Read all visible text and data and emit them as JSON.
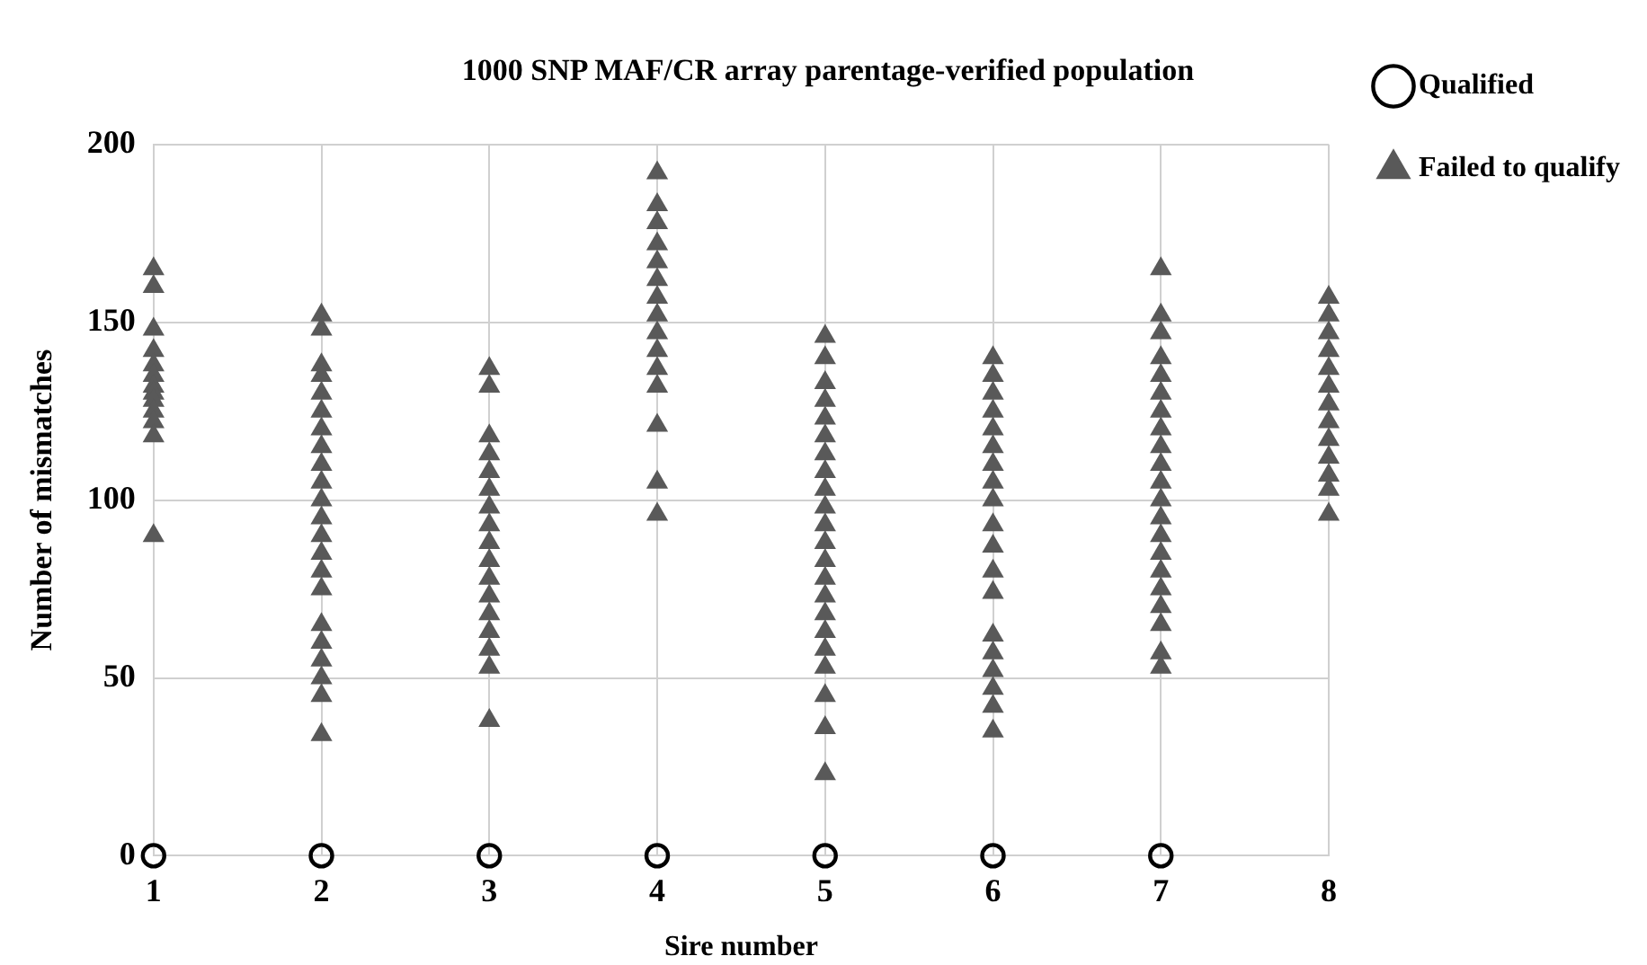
{
  "chart_data": {
    "type": "scatter",
    "title": "1000 SNP MAF/CR array parentage-verified population",
    "xlabel": "Sire number",
    "ylabel": "Number of mismatches",
    "xlim": [
      1,
      8
    ],
    "xticks": [
      1,
      2,
      3,
      4,
      5,
      6,
      7,
      8
    ],
    "ylim": [
      0,
      200
    ],
    "yticks": [
      0,
      50,
      100,
      150,
      200
    ],
    "grid": true,
    "legend": "right",
    "series": [
      {
        "name": "Qualified",
        "color": "#000000",
        "marker": "circle",
        "x": [
          1,
          2,
          3,
          4,
          5,
          6,
          7
        ],
        "values": [
          0,
          0,
          0,
          0,
          0,
          0,
          0
        ]
      },
      {
        "name": "Failed to qualify",
        "color": "#595959",
        "marker": "triangle",
        "x": [
          1,
          1,
          1,
          1,
          1,
          1,
          1,
          1,
          1,
          1,
          1,
          1,
          1,
          2,
          2,
          2,
          2,
          2,
          2,
          2,
          2,
          2,
          2,
          2,
          2,
          2,
          2,
          2,
          2,
          2,
          2,
          2,
          2,
          2,
          2,
          3,
          3,
          3,
          3,
          3,
          3,
          3,
          3,
          3,
          3,
          3,
          3,
          3,
          3,
          3,
          3,
          3,
          4,
          4,
          4,
          4,
          4,
          4,
          4,
          4,
          4,
          4,
          4,
          4,
          4,
          4,
          4,
          5,
          5,
          5,
          5,
          5,
          5,
          5,
          5,
          5,
          5,
          5,
          5,
          5,
          5,
          5,
          5,
          5,
          5,
          5,
          5,
          5,
          5,
          6,
          6,
          6,
          6,
          6,
          6,
          6,
          6,
          6,
          6,
          6,
          6,
          6,
          6,
          6,
          6,
          6,
          6,
          6,
          7,
          7,
          7,
          7,
          7,
          7,
          7,
          7,
          7,
          7,
          7,
          7,
          7,
          7,
          7,
          7,
          7,
          7,
          7,
          7,
          7,
          8,
          8,
          8,
          8,
          8,
          8,
          8,
          8,
          8,
          8,
          8,
          8,
          8
        ],
        "values": [
          165,
          160,
          148,
          142,
          138,
          135,
          132,
          130,
          128,
          125,
          122,
          118,
          90,
          152,
          148,
          138,
          135,
          130,
          125,
          120,
          115,
          110,
          105,
          100,
          95,
          90,
          85,
          80,
          75,
          65,
          60,
          55,
          50,
          45,
          34,
          137,
          132,
          118,
          113,
          108,
          103,
          98,
          93,
          88,
          83,
          78,
          73,
          68,
          63,
          58,
          53,
          38,
          192,
          183,
          178,
          172,
          167,
          162,
          157,
          152,
          147,
          142,
          137,
          132,
          121,
          105,
          96,
          146,
          140,
          133,
          128,
          123,
          118,
          113,
          108,
          103,
          98,
          93,
          88,
          83,
          78,
          73,
          68,
          63,
          58,
          53,
          45,
          36,
          23,
          140,
          135,
          130,
          125,
          120,
          115,
          110,
          105,
          100,
          93,
          87,
          80,
          74,
          62,
          57,
          52,
          47,
          42,
          35,
          165,
          152,
          147,
          140,
          135,
          130,
          125,
          120,
          115,
          110,
          105,
          100,
          95,
          90,
          85,
          80,
          75,
          70,
          65,
          57,
          53,
          157,
          152,
          147,
          142,
          137,
          132,
          127,
          122,
          117,
          112,
          107,
          103,
          96
        ]
      }
    ]
  }
}
